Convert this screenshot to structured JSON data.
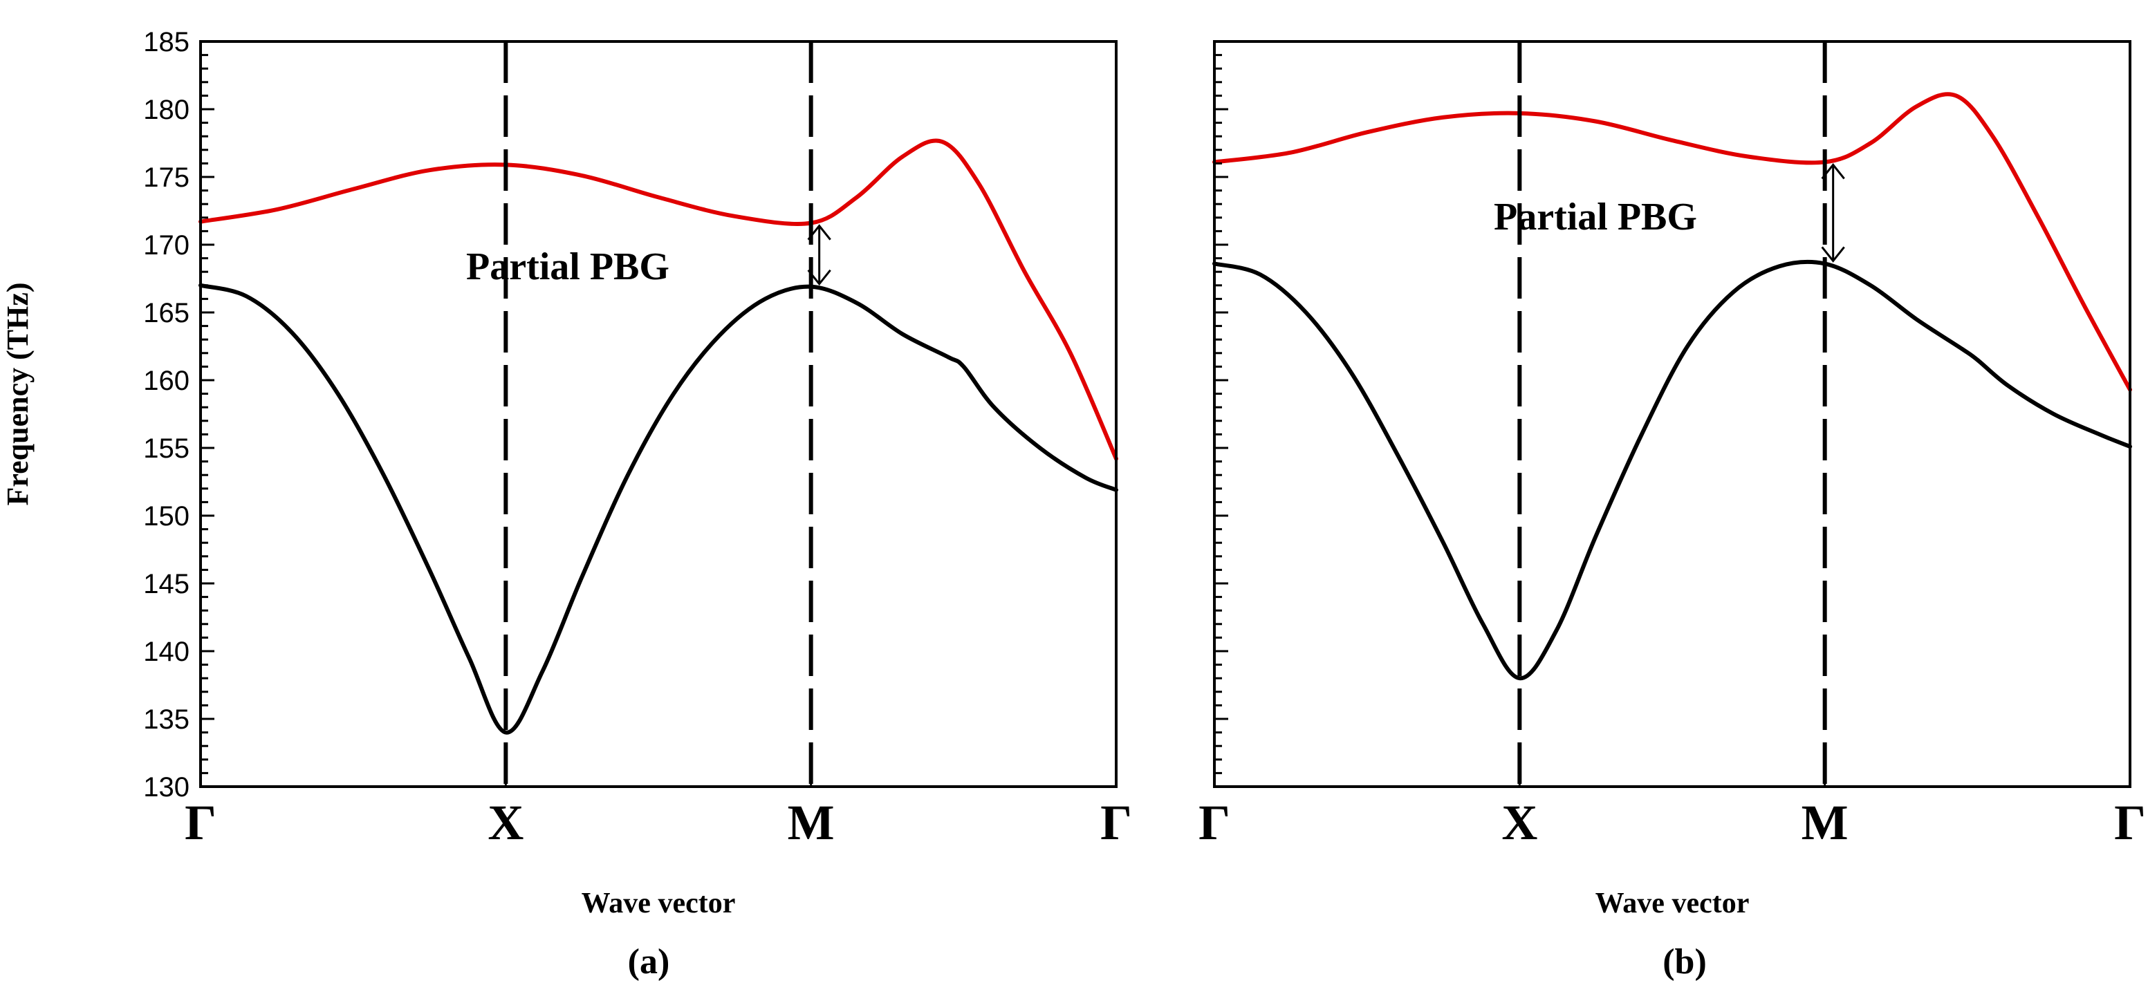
{
  "figure": {
    "panels": [
      {
        "caption": "(a)",
        "annotation": "Partial PBG"
      },
      {
        "caption": "(b)",
        "annotation": "Partial PBG"
      }
    ]
  },
  "chart_data": [
    {
      "type": "line",
      "panel": "(a)",
      "ylabel": "Frequency (THz)",
      "xlabel": "Wave vector",
      "ylim": [
        130,
        185
      ],
      "yticks": [
        130,
        135,
        140,
        145,
        150,
        155,
        160,
        165,
        170,
        175,
        180,
        185
      ],
      "x_ticks": [
        {
          "x": 0,
          "label": "Γ"
        },
        {
          "x": 1,
          "label": "X"
        },
        {
          "x": 2,
          "label": "M"
        },
        {
          "x": 3,
          "label": "Γ"
        }
      ],
      "dashed_lines_at": [
        1,
        2
      ],
      "series": [
        {
          "color": "#e00000",
          "points": [
            [
              0,
              171.7
            ],
            [
              0.25,
              172.6
            ],
            [
              0.5,
              174.1
            ],
            [
              0.75,
              175.5
            ],
            [
              1.0,
              175.9
            ],
            [
              1.25,
              175.1
            ],
            [
              1.5,
              173.5
            ],
            [
              1.75,
              172.1
            ],
            [
              2.0,
              171.6
            ],
            [
              2.15,
              173.5
            ],
            [
              2.3,
              176.5
            ],
            [
              2.43,
              177.6
            ],
            [
              2.55,
              174.5
            ],
            [
              2.7,
              168.0
            ],
            [
              2.85,
              162.0
            ],
            [
              3.0,
              154.2
            ]
          ]
        },
        {
          "color": "#000000",
          "points": [
            [
              0,
              167.0
            ],
            [
              0.15,
              166.2
            ],
            [
              0.3,
              163.5
            ],
            [
              0.45,
              159.0
            ],
            [
              0.6,
              153.0
            ],
            [
              0.75,
              146.0
            ],
            [
              0.88,
              139.5
            ],
            [
              1.0,
              134.0
            ],
            [
              1.12,
              138.5
            ],
            [
              1.25,
              145.5
            ],
            [
              1.4,
              153.0
            ],
            [
              1.55,
              159.0
            ],
            [
              1.7,
              163.3
            ],
            [
              1.85,
              166.0
            ],
            [
              2.0,
              166.9
            ],
            [
              2.15,
              165.7
            ],
            [
              2.3,
              163.4
            ],
            [
              2.45,
              161.7
            ],
            [
              2.5,
              161.0
            ],
            [
              2.6,
              158.0
            ],
            [
              2.75,
              155.0
            ],
            [
              2.9,
              152.8
            ],
            [
              3.0,
              151.9
            ]
          ]
        }
      ],
      "annotation": {
        "text": "Partial PBG",
        "arrow_x": 2,
        "arrow_from": 166.9,
        "arrow_to": 171.6
      }
    },
    {
      "type": "line",
      "panel": "(b)",
      "xlabel": "Wave vector",
      "ylim": [
        130,
        185
      ],
      "x_ticks": [
        {
          "x": 0,
          "label": "Γ"
        },
        {
          "x": 1,
          "label": "X"
        },
        {
          "x": 2,
          "label": "M"
        },
        {
          "x": 3,
          "label": "Γ"
        }
      ],
      "dashed_lines_at": [
        1,
        2
      ],
      "series": [
        {
          "color": "#e00000",
          "points": [
            [
              0,
              176.1
            ],
            [
              0.25,
              176.8
            ],
            [
              0.5,
              178.3
            ],
            [
              0.75,
              179.4
            ],
            [
              1.0,
              179.7
            ],
            [
              1.25,
              179.1
            ],
            [
              1.5,
              177.7
            ],
            [
              1.75,
              176.5
            ],
            [
              2.0,
              176.1
            ],
            [
              2.15,
              177.5
            ],
            [
              2.3,
              180.2
            ],
            [
              2.43,
              181.0
            ],
            [
              2.55,
              178.0
            ],
            [
              2.7,
              172.0
            ],
            [
              2.85,
              165.5
            ],
            [
              3.0,
              159.3
            ]
          ]
        },
        {
          "color": "#000000",
          "points": [
            [
              0,
              168.6
            ],
            [
              0.15,
              167.8
            ],
            [
              0.3,
              165.0
            ],
            [
              0.45,
              160.5
            ],
            [
              0.6,
              154.5
            ],
            [
              0.75,
              148.0
            ],
            [
              0.88,
              142.0
            ],
            [
              1.0,
              138.0
            ],
            [
              1.12,
              141.5
            ],
            [
              1.25,
              148.5
            ],
            [
              1.4,
              156.0
            ],
            [
              1.55,
              162.5
            ],
            [
              1.7,
              166.5
            ],
            [
              1.85,
              168.4
            ],
            [
              2.0,
              168.6
            ],
            [
              2.15,
              167.0
            ],
            [
              2.3,
              164.5
            ],
            [
              2.45,
              162.3
            ],
            [
              2.5,
              161.5
            ],
            [
              2.6,
              159.6
            ],
            [
              2.75,
              157.5
            ],
            [
              2.9,
              156.0
            ],
            [
              3.0,
              155.1
            ]
          ]
        }
      ],
      "annotation": {
        "text": "Partial PBG",
        "arrow_x": 2,
        "arrow_from": 168.6,
        "arrow_to": 176.1
      }
    }
  ]
}
